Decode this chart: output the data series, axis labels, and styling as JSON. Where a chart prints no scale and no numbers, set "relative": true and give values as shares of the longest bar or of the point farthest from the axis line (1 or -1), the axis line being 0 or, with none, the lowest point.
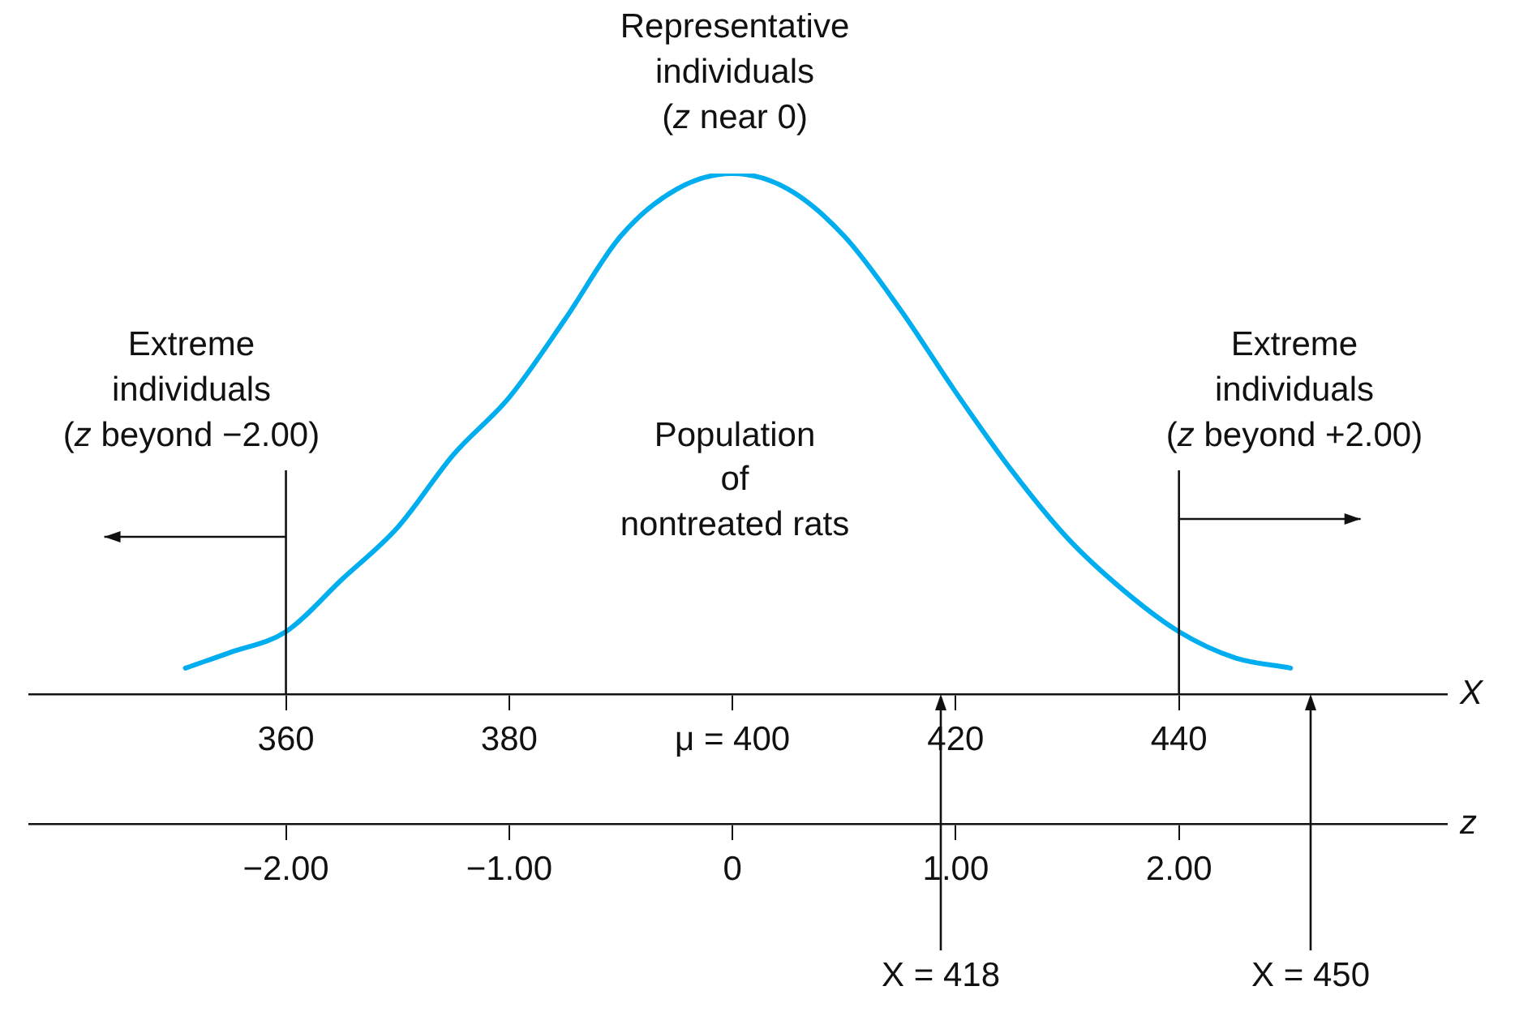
{
  "chart_data": {
    "type": "line",
    "relative": true,
    "xlabel": "X",
    "x2label": "z",
    "x": [
      351,
      355,
      360,
      365,
      370,
      375,
      380,
      385,
      390,
      395,
      400,
      405,
      410,
      415,
      420,
      425,
      430,
      435,
      440,
      445,
      450
    ],
    "series": [
      {
        "color": "#00aeef",
        "values": [
          0.05,
          0.08,
          0.12,
          0.22,
          0.32,
          0.46,
          0.57,
          0.72,
          0.88,
          0.97,
          1,
          0.97,
          0.88,
          0.74,
          0.58,
          0.43,
          0.3,
          0.2,
          0.12,
          0.07,
          0.05
        ]
      }
    ],
    "xlim": [
      337,
      464
    ],
    "xticks": [
      360,
      380,
      {
        "value": 400,
        "label": "μ = 400"
      },
      420,
      440
    ],
    "x2lim": [
      -3.15,
      3.2
    ],
    "x2ticks": [
      {
        "value": -2,
        "label": "−2.00"
      },
      {
        "value": -1,
        "label": "−1.00"
      },
      0,
      {
        "value": 1,
        "label": "1.00"
      },
      {
        "value": 2,
        "label": "2.00"
      }
    ],
    "ref_lines": [
      {
        "axis": "x",
        "value": 360
      },
      {
        "axis": "x",
        "value": 440
      }
    ],
    "annotations": [
      "Representative individuals (z near 0)",
      "Extreme individuals (z beyond −2.00)",
      "Extreme individuals (z beyond +2.00)",
      "Population of nontreated rats",
      "X = 418",
      "X = 450"
    ],
    "grid": false,
    "legend": false,
    "marker": "none",
    "line_style": "solid"
  }
}
